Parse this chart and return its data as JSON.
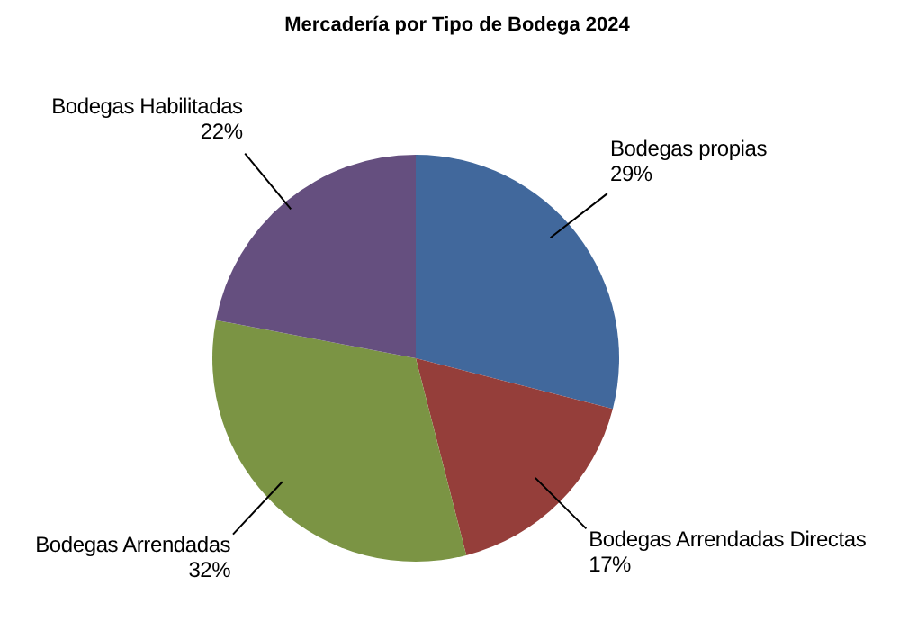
{
  "chart_data": {
    "type": "pie",
    "title": "Mercadería por Tipo de Bodega 2024",
    "categories": [
      "Bodegas propias",
      "Bodegas Arrendadas Directas",
      "Bodegas Arrendadas",
      "Bodegas Habilitadas"
    ],
    "values": [
      29,
      17,
      32,
      22
    ],
    "value_labels": [
      "29%",
      "17%",
      "32%",
      "22%"
    ],
    "colors": [
      "#41689c",
      "#953e3a",
      "#7b9444",
      "#654f7f"
    ],
    "legend": false
  }
}
